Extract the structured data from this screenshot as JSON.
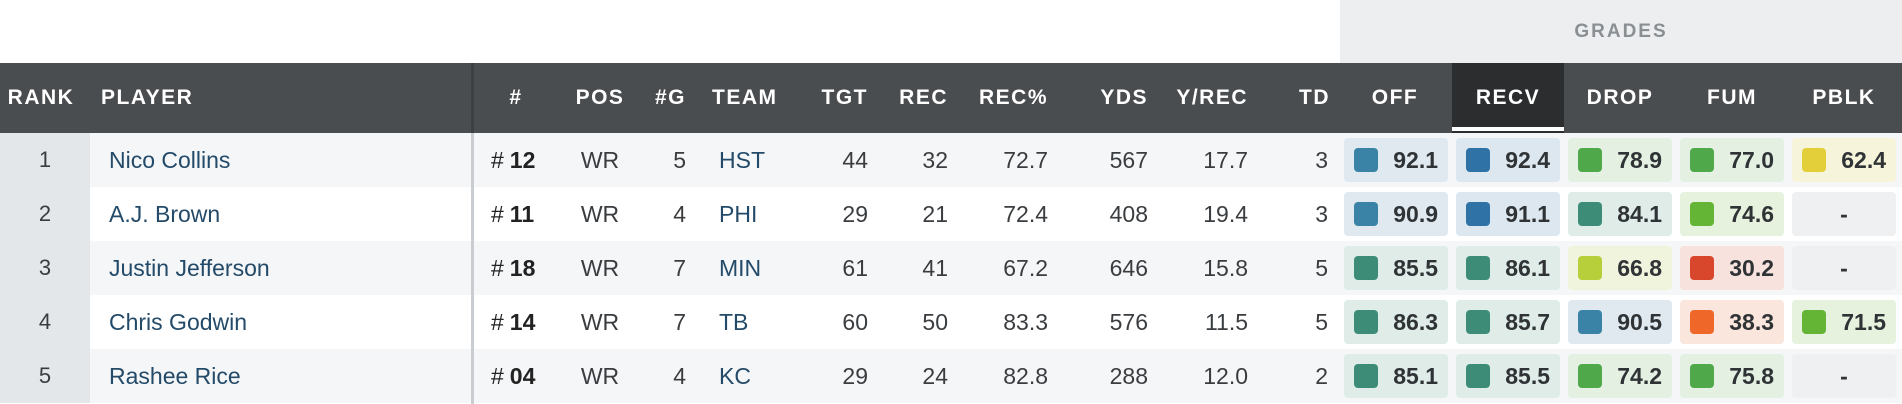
{
  "grades_header": "GRADES",
  "columns": {
    "rank": "RANK",
    "player": "PLAYER",
    "jersey": "#",
    "pos": "POS",
    "games": "#G",
    "team": "TEAM",
    "tgt": "TGT",
    "rec": "REC",
    "rec_pct": "REC%",
    "yds": "YDS",
    "y_rec": "Y/REC",
    "td": "TD",
    "off": "OFF",
    "recv": "RECV",
    "drop": "DROP",
    "fum": "FUM",
    "pblk": "PBLK"
  },
  "active_sort_column": "RECV",
  "colors": {
    "header_bg": "#4a4d50",
    "active_header_bg": "#2b2d2f",
    "grade_blue": "#2f72a6",
    "grade_teal_blue": "#3a83a6",
    "grade_teal": "#3d8c78",
    "grade_green": "#4fa84a",
    "grade_lime": "#64b436",
    "grade_yellowgreen": "#b8cf3c",
    "grade_yellow": "#e2cf3a",
    "grade_orange": "#f0672a",
    "grade_red": "#d8472b"
  },
  "rows": [
    {
      "rank": "1",
      "player": "Nico Collins",
      "jersey_hash": "#",
      "jersey": "12",
      "pos": "WR",
      "games": "5",
      "team": "HST",
      "tgt": "44",
      "rec": "32",
      "rec_pct": "72.7",
      "yds": "567",
      "y_rec": "17.7",
      "td": "3",
      "off": "92.1",
      "recv": "92.4",
      "drop": "78.9",
      "fum": "77.0",
      "pblk": "62.4"
    },
    {
      "rank": "2",
      "player": "A.J. Brown",
      "jersey_hash": "#",
      "jersey": "11",
      "pos": "WR",
      "games": "4",
      "team": "PHI",
      "tgt": "29",
      "rec": "21",
      "rec_pct": "72.4",
      "yds": "408",
      "y_rec": "19.4",
      "td": "3",
      "off": "90.9",
      "recv": "91.1",
      "drop": "84.1",
      "fum": "74.6",
      "pblk": "-"
    },
    {
      "rank": "3",
      "player": "Justin Jefferson",
      "jersey_hash": "#",
      "jersey": "18",
      "pos": "WR",
      "games": "7",
      "team": "MIN",
      "tgt": "61",
      "rec": "41",
      "rec_pct": "67.2",
      "yds": "646",
      "y_rec": "15.8",
      "td": "5",
      "off": "85.5",
      "recv": "86.1",
      "drop": "66.8",
      "fum": "30.2",
      "pblk": "-"
    },
    {
      "rank": "4",
      "player": "Chris Godwin",
      "jersey_hash": "#",
      "jersey": "14",
      "pos": "WR",
      "games": "7",
      "team": "TB",
      "tgt": "60",
      "rec": "50",
      "rec_pct": "83.3",
      "yds": "576",
      "y_rec": "11.5",
      "td": "5",
      "off": "86.3",
      "recv": "85.7",
      "drop": "90.5",
      "fum": "38.3",
      "pblk": "71.5"
    },
    {
      "rank": "5",
      "player": "Rashee Rice",
      "jersey_hash": "#",
      "jersey": "04",
      "pos": "WR",
      "games": "4",
      "team": "KC",
      "tgt": "29",
      "rec": "24",
      "rec_pct": "82.8",
      "yds": "288",
      "y_rec": "12.0",
      "td": "2",
      "off": "85.1",
      "recv": "85.5",
      "drop": "74.2",
      "fum": "75.8",
      "pblk": "-"
    }
  ]
}
